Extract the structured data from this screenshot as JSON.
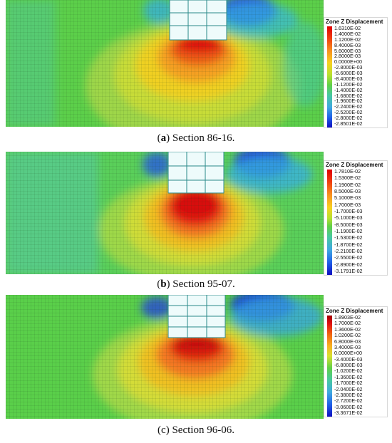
{
  "panels": [
    {
      "caption_letter": "a",
      "caption_text": " Section 86-16.",
      "legend_title": "Zone Z Displacement",
      "legend_values": [
        "1.6310E-02",
        "1.4000E-02",
        "1.1200E-02",
        "8.4000E-03",
        "5.6000E-03",
        "2.8000E-03",
        "0.0000E+00",
        "-2.8000E-03",
        "-5.6000E-03",
        "-8.4000E-03",
        "-1.1200E-02",
        "-1.4000E-02",
        "-1.6800E-02",
        "-1.9600E-02",
        "-2.2400E-02",
        "-2.5200E-02",
        "-2.8000E-02",
        "-2.8501E-02"
      ]
    },
    {
      "caption_letter": "b",
      "caption_text": " Section 95-07.",
      "legend_title": "Zone Z Displacement",
      "legend_values": [
        "1.7810E-02",
        "1.5300E-02",
        "1.1900E-02",
        "8.5000E-03",
        "5.1000E-03",
        "1.7000E-03",
        "-1.7000E-03",
        "-5.1000E-03",
        "-8.5000E-03",
        "-1.1900E-02",
        "-1.5300E-02",
        "-1.8700E-02",
        "-2.2100E-02",
        "-2.5500E-02",
        "-2.8900E-02",
        "-3.1791E-02"
      ]
    },
    {
      "caption_letter": "c",
      "caption_text": " Section 96-06.",
      "legend_title": "Zone Z Displacement",
      "legend_values": [
        "1.8903E-02",
        "1.7000E-02",
        "1.3600E-02",
        "1.0200E-02",
        "6.8000E-03",
        "3.4000E-03",
        "0.0000E+00",
        "-3.4000E-03",
        "-6.8000E-03",
        "-1.0200E-02",
        "-1.3600E-02",
        "-1.7000E-02",
        "-2.0400E-02",
        "-2.3800E-02",
        "-2.7200E-02",
        "-3.0600E-02",
        "-3.3671E-02"
      ]
    }
  ]
}
